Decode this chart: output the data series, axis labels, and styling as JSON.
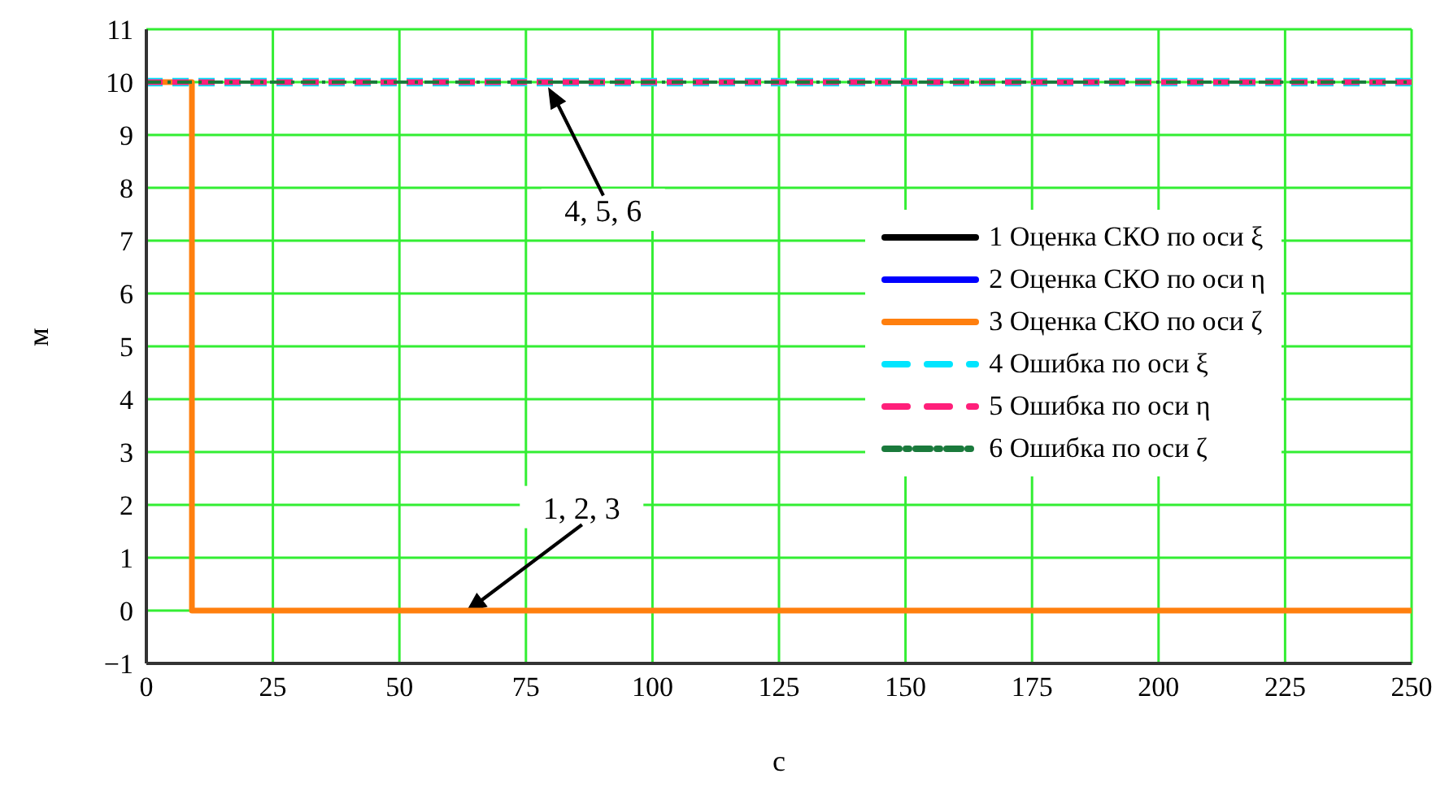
{
  "chart_data": {
    "type": "line",
    "xlabel": "с",
    "ylabel": "м",
    "xlim": [
      0,
      250
    ],
    "xticks": [
      0,
      25,
      50,
      75,
      100,
      125,
      150,
      175,
      200,
      225,
      250
    ],
    "ylim": [
      -1,
      11
    ],
    "yticks": [
      {
        "value": -1,
        "label": "−1"
      },
      0,
      1,
      2,
      3,
      4,
      5,
      6,
      7,
      8,
      9,
      10,
      11
    ],
    "grid": true,
    "legend": "right",
    "series": [
      {
        "name": "1 Оценка СКО по оси ξ",
        "color": "#000000",
        "line_style": "solid",
        "values": [
          null,
          null,
          null,
          null
        ]
      },
      {
        "name": "2 Оценка СКО по оси η",
        "color": "#0000ff",
        "line_style": "solid",
        "values": [
          null,
          null,
          null,
          null
        ]
      },
      {
        "name": "3 Оценка СКО по оси ζ",
        "color": "#ff7f0e",
        "line_style": "solid",
        "x": [
          0,
          9,
          9,
          250
        ],
        "values": [
          10,
          10,
          0,
          0
        ]
      },
      {
        "name": "4 Ошибка по оси ξ",
        "color": "#00e5ff",
        "line_style": "dashed",
        "x": [
          0,
          250
        ],
        "values": [
          10,
          10
        ]
      },
      {
        "name": "5 Ошибка по оси η",
        "color": "#ff1f7a",
        "line_style": "dashed",
        "x": [
          0,
          250
        ],
        "values": [
          10,
          10
        ]
      },
      {
        "name": "6 Ошибка по оси ζ",
        "color": "#1a7a3c",
        "line_style": "dotted",
        "x": [
          0,
          250
        ],
        "values": [
          10,
          10
        ]
      }
    ],
    "annotations": [
      "4, 5, 6",
      "1, 2, 3"
    ]
  }
}
